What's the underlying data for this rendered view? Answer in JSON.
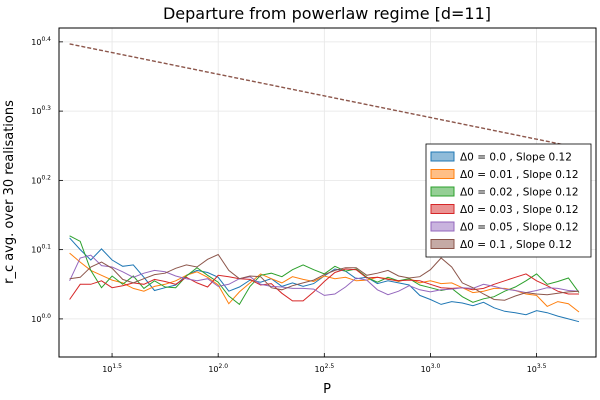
{
  "chart_data": {
    "type": "line",
    "title": "Departure from powerlaw regime [d=11]",
    "xlabel": "P",
    "ylabel": "r_c avg. over 30 realisations",
    "x_scale": "log10",
    "y_scale": "log10-style exponent ticks",
    "xlim_exponent": [
      1.25,
      3.78
    ],
    "ylim_exponent": [
      -0.055,
      0.42
    ],
    "x_ticks": [
      {
        "base": "10",
        "exp": "1.5",
        "value": 1.5
      },
      {
        "base": "10",
        "exp": "2.0",
        "value": 2.0
      },
      {
        "base": "10",
        "exp": "2.5",
        "value": 2.5
      },
      {
        "base": "10",
        "exp": "3.0",
        "value": 3.0
      },
      {
        "base": "10",
        "exp": "3.5",
        "value": 3.5
      }
    ],
    "y_ticks": [
      {
        "base": "10",
        "exp": "0.0",
        "value": 0.0
      },
      {
        "base": "10",
        "exp": "0.1",
        "value": 0.1
      },
      {
        "base": "10",
        "exp": "0.2",
        "value": 0.2
      },
      {
        "base": "10",
        "exp": "0.3",
        "value": 0.3
      },
      {
        "base": "10",
        "exp": "0.4",
        "value": 0.4
      }
    ],
    "grid": true,
    "legend_position": "right",
    "reference_line": {
      "style": "dashed",
      "color": "#8c564b",
      "x": [
        1.3,
        3.7
      ],
      "y": [
        0.397,
        0.247
      ]
    },
    "x": [
      1.3,
      1.35,
      1.4,
      1.45,
      1.5,
      1.55,
      1.6,
      1.65,
      1.7,
      1.75,
      1.8,
      1.85,
      1.9,
      1.95,
      2.0,
      2.05,
      2.1,
      2.15,
      2.2,
      2.25,
      2.3,
      2.35,
      2.4,
      2.45,
      2.5,
      2.55,
      2.6,
      2.65,
      2.7,
      2.75,
      2.8,
      2.85,
      2.9,
      2.95,
      3.0,
      3.05,
      3.1,
      3.15,
      3.2,
      3.25,
      3.3,
      3.35,
      3.4,
      3.45,
      3.5,
      3.55,
      3.6,
      3.65,
      3.7
    ],
    "series": [
      {
        "name": "Δ0 = 0.0 , Slope 0.12",
        "color": "#1f77b4",
        "values": [
          0.117,
          0.1,
          0.085,
          0.101,
          0.085,
          0.076,
          0.078,
          0.06,
          0.041,
          0.045,
          0.049,
          0.063,
          0.07,
          0.067,
          0.06,
          0.04,
          0.046,
          0.056,
          0.053,
          0.058,
          0.047,
          0.052,
          0.047,
          0.051,
          0.062,
          0.072,
          0.069,
          0.058,
          0.06,
          0.051,
          0.055,
          0.052,
          0.049,
          0.034,
          0.028,
          0.021,
          0.025,
          0.023,
          0.019,
          0.024,
          0.016,
          0.011,
          0.009,
          0.006,
          0.012,
          0.009,
          0.004,
          0.0,
          -0.004
        ]
      },
      {
        "name": "Δ0 = 0.01 , Slope 0.12",
        "color": "#ff7f0e",
        "values": [
          0.095,
          0.082,
          0.07,
          0.063,
          0.056,
          0.052,
          0.044,
          0.04,
          0.047,
          0.05,
          0.055,
          0.063,
          0.068,
          0.06,
          0.049,
          0.022,
          0.039,
          0.052,
          0.065,
          0.058,
          0.052,
          0.061,
          0.057,
          0.054,
          0.062,
          0.058,
          0.06,
          0.055,
          0.056,
          0.06,
          0.058,
          0.054,
          0.058,
          0.052,
          0.055,
          0.051,
          0.052,
          0.045,
          0.038,
          0.04,
          0.044,
          0.044,
          0.041,
          0.036,
          0.034,
          0.018,
          0.025,
          0.022,
          0.01
        ]
      },
      {
        "name": "Δ0 = 0.02 , Slope 0.12",
        "color": "#2ca02c",
        "values": [
          0.12,
          0.112,
          0.07,
          0.045,
          0.062,
          0.05,
          0.062,
          0.044,
          0.055,
          0.046,
          0.045,
          0.062,
          0.074,
          0.063,
          0.053,
          0.033,
          0.021,
          0.047,
          0.063,
          0.066,
          0.061,
          0.071,
          0.078,
          0.071,
          0.065,
          0.076,
          0.069,
          0.072,
          0.06,
          0.053,
          0.06,
          0.055,
          0.058,
          0.049,
          0.045,
          0.041,
          0.044,
          0.032,
          0.024,
          0.029,
          0.032,
          0.04,
          0.046,
          0.055,
          0.065,
          0.05,
          0.054,
          0.059,
          0.038
        ]
      },
      {
        "name": "Δ0 = 0.03 , Slope 0.12",
        "color": "#d62728",
        "values": [
          0.028,
          0.05,
          0.05,
          0.055,
          0.045,
          0.048,
          0.052,
          0.05,
          0.057,
          0.054,
          0.05,
          0.06,
          0.052,
          0.046,
          0.063,
          0.061,
          0.058,
          0.057,
          0.049,
          0.051,
          0.037,
          0.026,
          0.026,
          0.039,
          0.054,
          0.067,
          0.072,
          0.071,
          0.059,
          0.06,
          0.057,
          0.055,
          0.056,
          0.055,
          0.05,
          0.045,
          0.044,
          0.045,
          0.042,
          0.044,
          0.05,
          0.055,
          0.06,
          0.065,
          0.055,
          0.048,
          0.04,
          0.036,
          0.036
        ]
      },
      {
        "name": "Δ0 = 0.05 , Slope 0.12",
        "color": "#9467bd",
        "values": [
          0.055,
          0.088,
          0.092,
          0.077,
          0.075,
          0.068,
          0.06,
          0.066,
          0.07,
          0.068,
          0.062,
          0.058,
          0.055,
          0.058,
          0.047,
          0.05,
          0.058,
          0.061,
          0.05,
          0.047,
          0.046,
          0.044,
          0.044,
          0.043,
          0.034,
          0.036,
          0.046,
          0.059,
          0.056,
          0.042,
          0.035,
          0.04,
          0.048,
          0.042,
          0.039,
          0.042,
          0.043,
          0.045,
          0.044,
          0.05,
          0.047,
          0.043,
          0.041,
          0.038,
          0.041,
          0.045,
          0.044,
          0.041,
          0.04
        ]
      },
      {
        "name": "Δ0 = 0.1 , Slope 0.12",
        "color": "#8c564b",
        "values": [
          0.058,
          0.06,
          0.075,
          0.082,
          0.073,
          0.057,
          0.052,
          0.058,
          0.064,
          0.066,
          0.073,
          0.078,
          0.075,
          0.086,
          0.093,
          0.07,
          0.058,
          0.062,
          0.061,
          0.045,
          0.042,
          0.048,
          0.052,
          0.056,
          0.064,
          0.07,
          0.074,
          0.074,
          0.063,
          0.066,
          0.07,
          0.062,
          0.059,
          0.061,
          0.071,
          0.088,
          0.075,
          0.052,
          0.045,
          0.036,
          0.028,
          0.027,
          0.033,
          0.038,
          0.036,
          0.035,
          0.037,
          0.039,
          0.04
        ]
      }
    ]
  }
}
